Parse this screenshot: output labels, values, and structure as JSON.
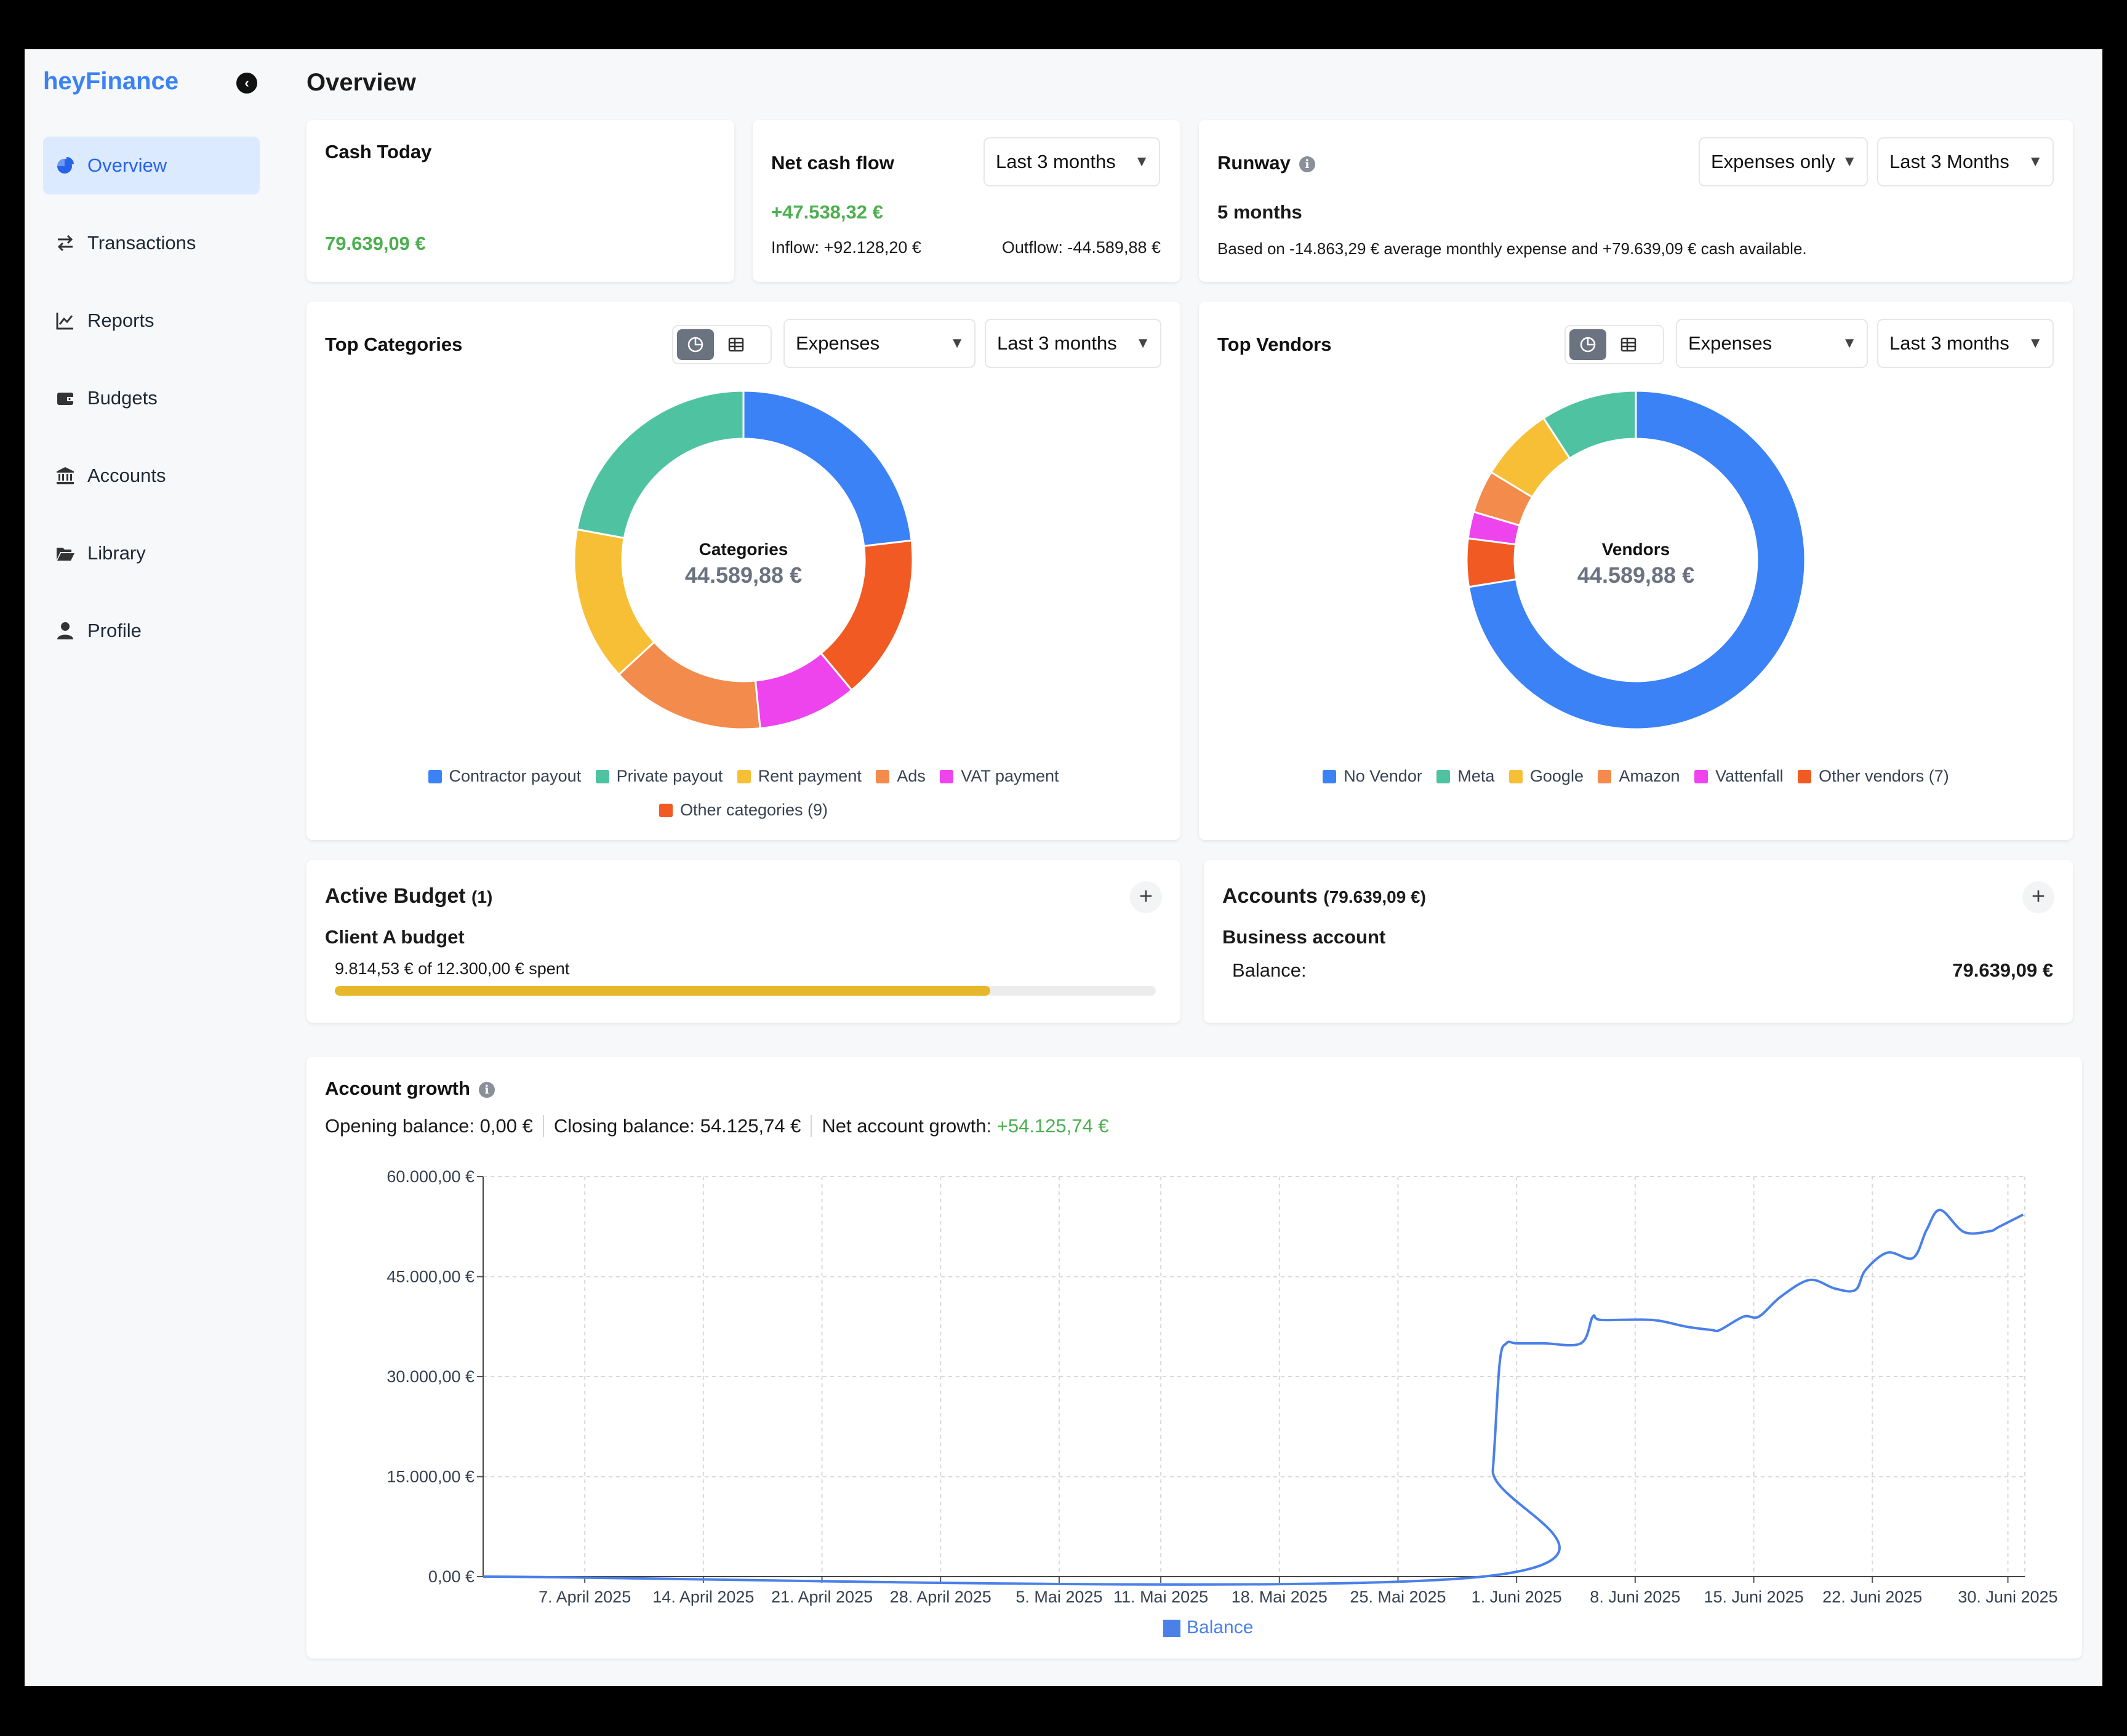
{
  "app": {
    "brand": "heyFinance",
    "page_title": "Overview"
  },
  "sidebar": {
    "items": [
      {
        "label": "Overview",
        "icon": "pie-chart-icon",
        "active": true
      },
      {
        "label": "Transactions",
        "icon": "swap-arrows-icon"
      },
      {
        "label": "Reports",
        "icon": "line-chart-icon"
      },
      {
        "label": "Budgets",
        "icon": "wallet-icon"
      },
      {
        "label": "Accounts",
        "icon": "bank-icon"
      },
      {
        "label": "Library",
        "icon": "folder-open-icon"
      },
      {
        "label": "Profile",
        "icon": "user-icon"
      }
    ]
  },
  "cash_today": {
    "title": "Cash Today",
    "value": "79.639,09 €"
  },
  "net_cash_flow": {
    "title": "Net cash flow",
    "period": "Last 3 months",
    "value": "+47.538,32 €",
    "inflow": "Inflow: +92.128,20 €",
    "outflow": "Outflow: -44.589,88 €"
  },
  "runway": {
    "title": "Runway",
    "mode": "Expenses only",
    "period": "Last 3 Months",
    "value": "5 months",
    "note": "Based on -14.863,29 € average monthly expense and +79.639,09 € cash available."
  },
  "top_categories": {
    "title": "Top Categories",
    "type_select": "Expenses",
    "period": "Last 3 months",
    "center_label": "Categories",
    "center_value": "44.589,88 €",
    "legend": [
      "Contractor payout",
      "Private payout",
      "Rent payment",
      "Ads",
      "VAT payment",
      "Other categories (9)"
    ]
  },
  "top_vendors": {
    "title": "Top Vendors",
    "type_select": "Expenses",
    "period": "Last 3 months",
    "center_label": "Vendors",
    "center_value": "44.589,88 €",
    "legend": [
      "No Vendor",
      "Meta",
      "Google",
      "Amazon",
      "Vattenfall",
      "Other vendors (7)"
    ]
  },
  "active_budget": {
    "title": "Active Budget",
    "count": "(1)",
    "budget_name": "Client A budget",
    "spent_text": "9.814,53 € of 12.300,00 € spent",
    "progress": 0.798
  },
  "accounts": {
    "title": "Accounts",
    "total": "(79.639,09 €)",
    "account_name": "Business account",
    "balance_label": "Balance:",
    "balance_value": "79.639,09 €"
  },
  "account_growth": {
    "title": "Account growth",
    "opening": "Opening balance: 0,00 €",
    "closing": "Closing balance: 54.125,74 €",
    "net_label": "Net account growth:",
    "net_value": "+54.125,74 €",
    "legend": "Balance"
  },
  "colors": {
    "blue": "#3b82f6",
    "teal": "#4fc3a1",
    "yellow": "#f7bf36",
    "orange": "#f28b4b",
    "magenta": "#ee44ee",
    "red": "#f15a22"
  },
  "chart_data": [
    {
      "type": "pie",
      "title": "Top Categories",
      "categories": [
        "Contractor payout",
        "Private payout",
        "Rent payment",
        "Ads",
        "VAT payment",
        "Other categories (9)"
      ],
      "values": [
        22,
        21,
        14,
        14,
        9,
        15
      ],
      "colors": [
        "#3b82f6",
        "#4fc3a1",
        "#f7bf36",
        "#f28b4b",
        "#ee44ee",
        "#f15a22"
      ],
      "segment_order": [
        0,
        5,
        4,
        3,
        2,
        1
      ]
    },
    {
      "type": "pie",
      "title": "Top Vendors",
      "categories": [
        "No Vendor",
        "Meta",
        "Google",
        "Amazon",
        "Vattenfall",
        "Other vendors (7)"
      ],
      "values": [
        71,
        9,
        7,
        4,
        2.5,
        4.5
      ],
      "colors": [
        "#3b82f6",
        "#4fc3a1",
        "#f7bf36",
        "#f28b4b",
        "#ee44ee",
        "#f15a22"
      ],
      "segment_order": [
        0,
        5,
        4,
        3,
        2,
        1
      ]
    },
    {
      "type": "line",
      "title": "Account growth",
      "series_name": "Balance",
      "x_range": [
        0,
        91
      ],
      "ylim": [
        0,
        60000
      ],
      "y_ticks": [
        "0,00 €",
        "15.000,00 €",
        "30.000,00 €",
        "45.000,00 €",
        "60.000,00 €"
      ],
      "x_ticks": [
        {
          "day": 6,
          "label": "7. April 2025"
        },
        {
          "day": 13,
          "label": "14. April 2025"
        },
        {
          "day": 20,
          "label": "21. April 2025"
        },
        {
          "day": 27,
          "label": "28. April 2025"
        },
        {
          "day": 34,
          "label": "5. Mai 2025"
        },
        {
          "day": 40,
          "label": "11. Mai 2025"
        },
        {
          "day": 47,
          "label": "18. Mai 2025"
        },
        {
          "day": 54,
          "label": "25. Mai 2025"
        },
        {
          "day": 61,
          "label": "1. Juni 2025"
        },
        {
          "day": 68,
          "label": "8. Juni 2025"
        },
        {
          "day": 75,
          "label": "15. Juni 2025"
        },
        {
          "day": 82,
          "label": "22. Juni 2025"
        },
        {
          "day": 90,
          "label": "30. Juni 2025"
        }
      ],
      "x": [
        0,
        59,
        59.6,
        60,
        60.4,
        61,
        62.6,
        64.8,
        65.5,
        66,
        69,
        71,
        72.5,
        73,
        74.4,
        75.3,
        76.6,
        78.3,
        79.8,
        81,
        81.6,
        82.9,
        84.4,
        85.2,
        86,
        87.4,
        88.9,
        89.5,
        90.9
      ],
      "y": [
        0,
        0,
        16000,
        32000,
        35000,
        35000,
        35000,
        35000,
        39000,
        38500,
        38500,
        37500,
        37000,
        37000,
        39000,
        39000,
        42000,
        44500,
        43200,
        43000,
        46000,
        48600,
        47800,
        52000,
        55000,
        51700,
        51800,
        52500,
        54300
      ]
    }
  ]
}
